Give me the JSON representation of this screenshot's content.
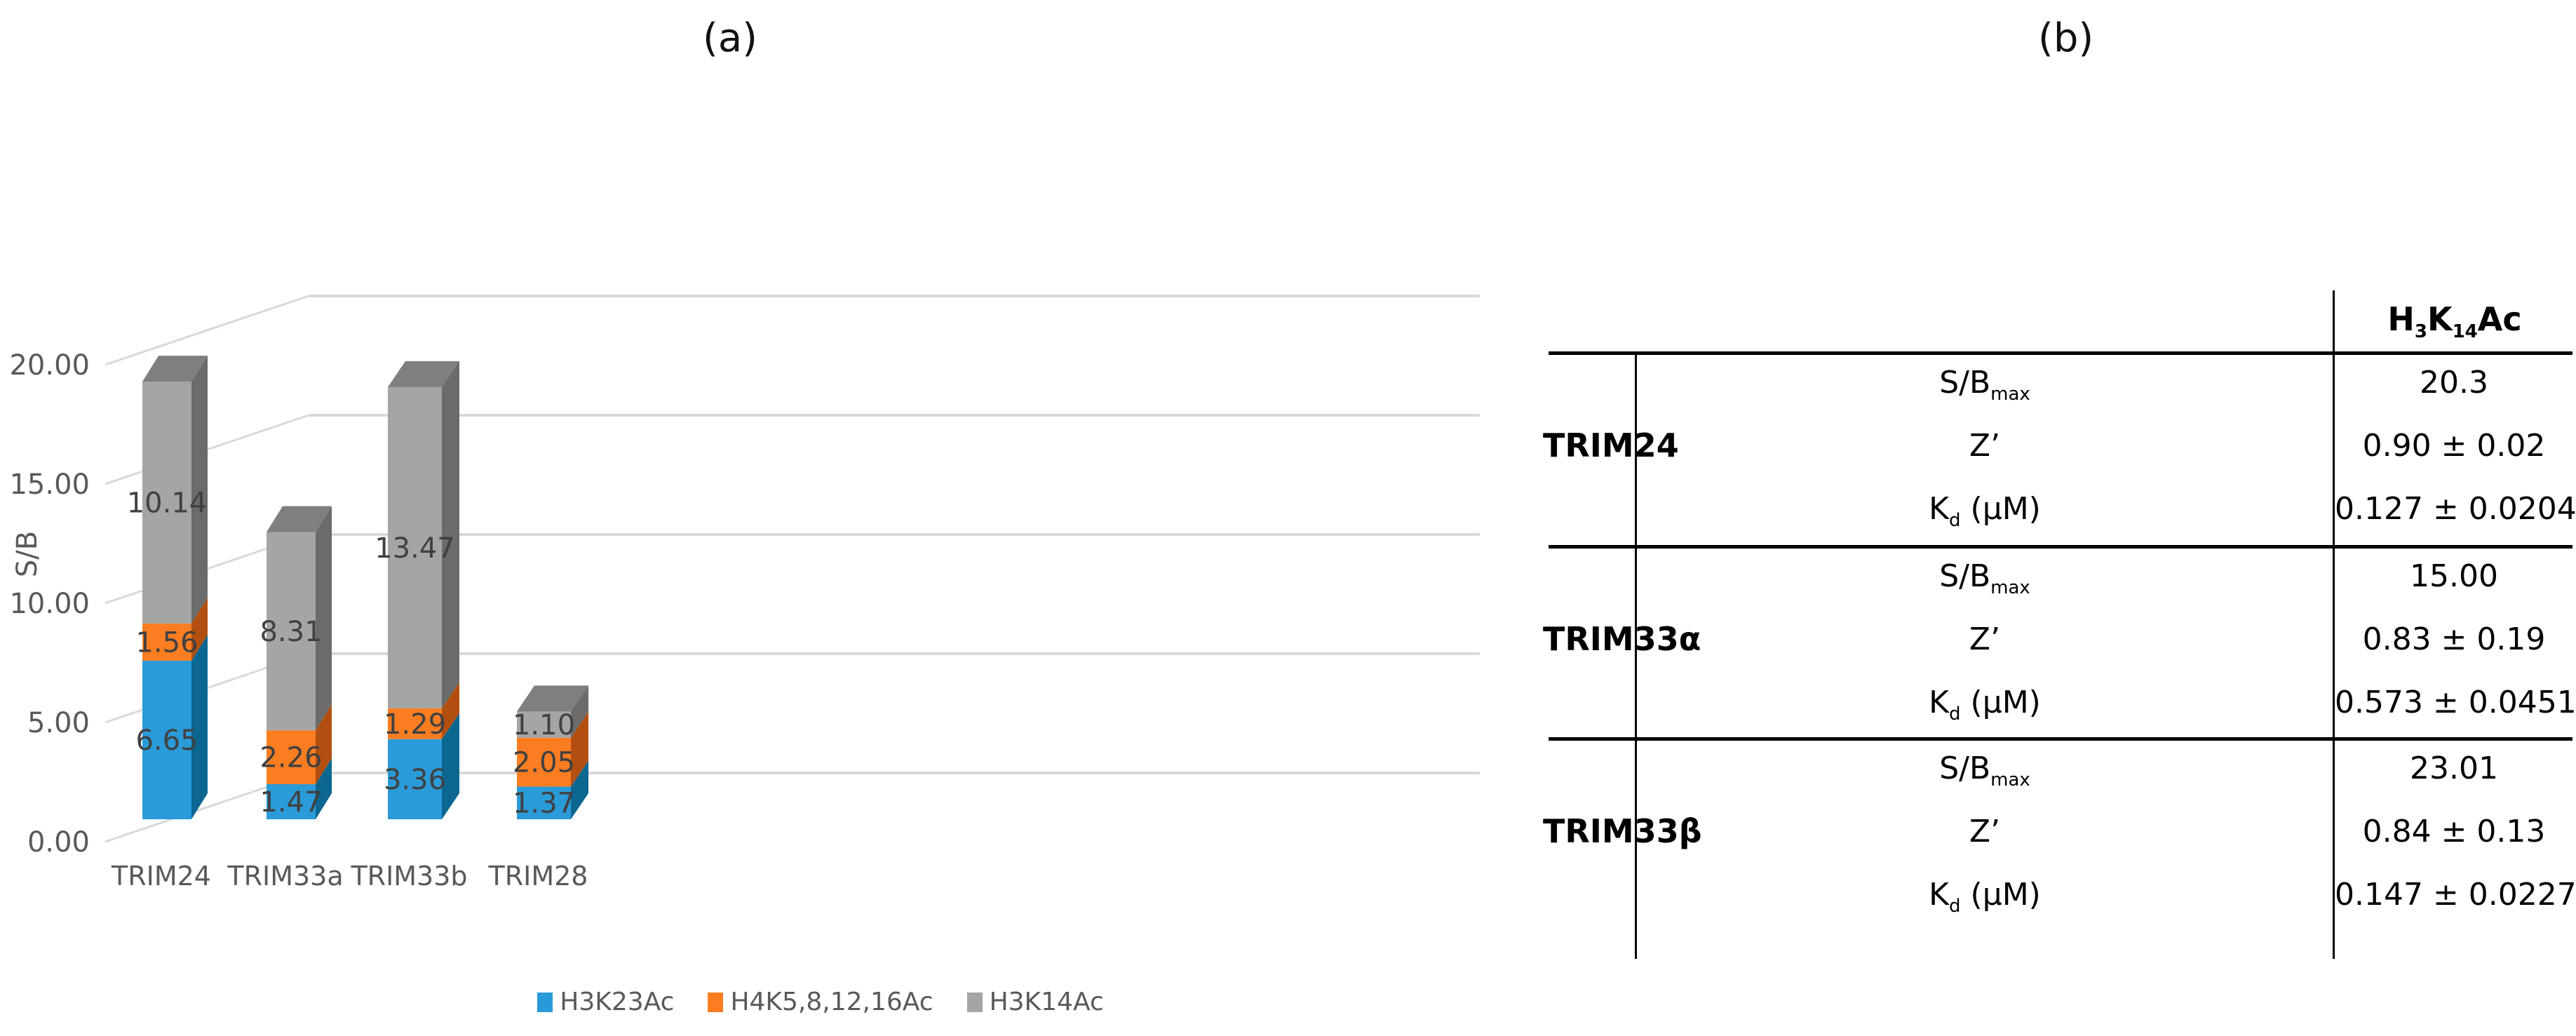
{
  "panels": {
    "a_label": "(a)",
    "b_label": "(b)"
  },
  "chart_data": {
    "type": "bar",
    "subtype": "stacked-3d-column",
    "title": "",
    "xlabel": "",
    "ylabel": "S/B",
    "ylim": [
      0,
      20
    ],
    "yticks": [
      "0.00",
      "5.00",
      "10.00",
      "15.00",
      "20.00"
    ],
    "grid": true,
    "legend_position": "bottom",
    "categories": [
      "TRIM24",
      "TRIM33a",
      "TRIM33b",
      "TRIM28"
    ],
    "series": [
      {
        "name": "H3K23Ac",
        "color": "#2a9bd8",
        "side_color": "#0b6690",
        "values": [
          6.65,
          1.47,
          3.36,
          1.37
        ],
        "labels": [
          "6.65",
          "1.47",
          "3.36",
          "1.37"
        ]
      },
      {
        "name": "H4K5,8,12,16Ac",
        "color": "#fb7d22",
        "side_color": "#b24f10",
        "values": [
          1.56,
          2.26,
          1.29,
          2.05
        ],
        "labels": [
          "1.56",
          "2.26",
          "1.29",
          "2.05"
        ]
      },
      {
        "name": "H3K14Ac",
        "color": "#a5a5a5",
        "side_color": "#6b6b6b",
        "top_color": "#7f7f7f",
        "values": [
          10.14,
          8.31,
          13.47,
          1.1
        ],
        "labels": [
          "10.14",
          "8.31",
          "13.47",
          "1.10"
        ]
      }
    ]
  },
  "legend": {
    "items": [
      {
        "label": "H3K23Ac",
        "color": "#2a9bd8"
      },
      {
        "label": "H4K5,8,12,16Ac",
        "color": "#fb7d22"
      },
      {
        "label": "H3K14Ac",
        "color": "#a5a5a5"
      }
    ]
  },
  "table": {
    "header": {
      "main": "H",
      "sub1": "3",
      "mid": "K",
      "sub2": "14",
      "tail": "Ac"
    },
    "groups": [
      {
        "name": "TRIM24",
        "rows": [
          {
            "param": "S/B",
            "param_sub": "max",
            "value": "20.3"
          },
          {
            "param": "Z’",
            "param_sub": "",
            "value": "0.90 ± 0.02"
          },
          {
            "param": "K",
            "param_sub": "d",
            "param_tail": " (μM)",
            "value": "0.127 ± 0.0204"
          }
        ]
      },
      {
        "name": "TRIM33α",
        "rows": [
          {
            "param": "S/B",
            "param_sub": "max",
            "value": "15.00"
          },
          {
            "param": "Z’",
            "param_sub": "",
            "value": "0.83 ± 0.19"
          },
          {
            "param": "K",
            "param_sub": "d",
            "param_tail": " (μM)",
            "value": "0.573 ± 0.0451"
          }
        ]
      },
      {
        "name": "TRIM33β",
        "rows": [
          {
            "param": "S/B",
            "param_sub": "max",
            "value": "23.01"
          },
          {
            "param": "Z’",
            "param_sub": "",
            "value": "0.84 ± 0.13"
          },
          {
            "param": "K",
            "param_sub": "d",
            "param_tail": " (μM)",
            "value": "0.147 ± 0.0227"
          }
        ]
      }
    ]
  }
}
